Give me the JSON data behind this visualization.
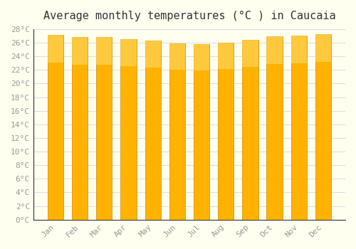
{
  "title": "Average monthly temperatures (°C ) in Caucaia",
  "months": [
    "Jan",
    "Feb",
    "Mar",
    "Apr",
    "May",
    "Jun",
    "Jul",
    "Aug",
    "Sep",
    "Oct",
    "Nov",
    "Dec"
  ],
  "values": [
    27.2,
    26.8,
    26.8,
    26.5,
    26.3,
    25.9,
    25.8,
    26.0,
    26.4,
    26.9,
    27.0,
    27.3
  ],
  "ylim": [
    0,
    28
  ],
  "yticks": [
    0,
    2,
    4,
    6,
    8,
    10,
    12,
    14,
    16,
    18,
    20,
    22,
    24,
    26,
    28
  ],
  "ytick_labels": [
    "0°C",
    "2°C",
    "4°C",
    "6°C",
    "8°C",
    "10°C",
    "12°C",
    "14°C",
    "16°C",
    "18°C",
    "20°C",
    "22°C",
    "24°C",
    "26°C",
    "28°C"
  ],
  "bar_color_top": "#FFA500",
  "bar_color_bottom": "#FFD700",
  "bar_edge_color": "#E8A000",
  "background_color": "#FFFFF0",
  "grid_color": "#DDDDDD",
  "title_fontsize": 11,
  "tick_fontsize": 8,
  "tick_color": "#999999",
  "font_family": "monospace"
}
